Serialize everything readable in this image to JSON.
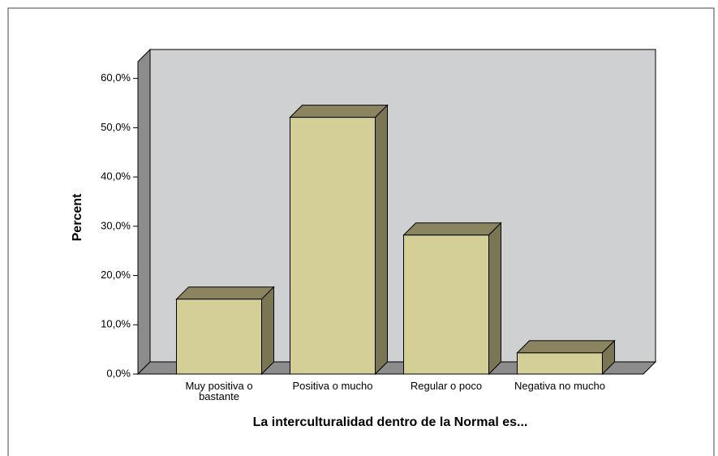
{
  "chart_data": {
    "type": "bar3d",
    "categories": [
      "Muy positiva o bastante",
      "Positiva o mucho",
      "Regular o poco",
      "Negativa no mucho"
    ],
    "values": [
      15.2,
      52.1,
      28.2,
      4.3
    ],
    "color": "#d4cf96",
    "y_label": "Percent",
    "x_label": "La interculturalidad dentro de la Normal es...",
    "ylim": [
      0,
      63.4
    ],
    "yticks": [
      {
        "value": 0,
        "label": "0,0%"
      },
      {
        "value": 10,
        "label": "10,0%"
      },
      {
        "value": 20,
        "label": "20,0%"
      },
      {
        "value": 30,
        "label": "30,0%"
      },
      {
        "value": 40,
        "label": "40,0%"
      },
      {
        "value": 50,
        "label": "50,0%"
      },
      {
        "value": 60,
        "label": "60,0%"
      }
    ]
  }
}
